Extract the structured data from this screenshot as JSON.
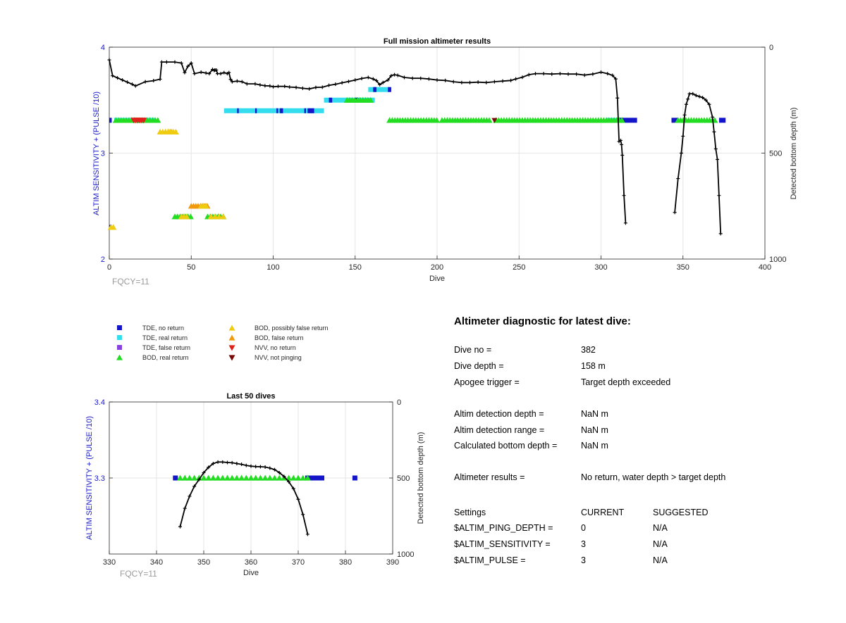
{
  "chart_data": [
    {
      "id": "full",
      "type": "scatter",
      "title": "Full mission altimeter results",
      "xlabel": "Dive",
      "ylabel": "ALTIM SENSITIVITY + (PULSE /10)",
      "y2label": "Detected bottom depth (m)",
      "xlim": [
        0,
        400
      ],
      "ylim": [
        2,
        4
      ],
      "y2lim": [
        1000,
        0
      ],
      "xticks": [
        0,
        50,
        100,
        150,
        200,
        250,
        300,
        350,
        400
      ],
      "yticks": [
        2,
        3,
        4
      ],
      "y2ticks": [
        0,
        500,
        1000
      ],
      "grid": true,
      "note": "FQCY=11",
      "depth_series": [
        [
          0,
          60
        ],
        [
          2,
          135
        ],
        [
          5,
          145
        ],
        [
          8,
          155
        ],
        [
          11,
          165
        ],
        [
          14,
          175
        ],
        [
          16,
          183
        ],
        [
          22,
          163
        ],
        [
          27,
          158
        ],
        [
          31,
          151
        ],
        [
          32,
          70
        ],
        [
          35,
          70
        ],
        [
          40,
          70
        ],
        [
          44,
          75
        ],
        [
          46,
          120
        ],
        [
          48,
          90
        ],
        [
          50,
          75
        ],
        [
          52,
          125
        ],
        [
          56,
          118
        ],
        [
          59,
          122
        ],
        [
          61,
          125
        ],
        [
          63,
          105
        ],
        [
          64,
          110
        ],
        [
          64.5,
          108
        ],
        [
          65.3,
          108
        ],
        [
          66,
          125
        ],
        [
          68,
          125
        ],
        [
          70,
          120
        ],
        [
          72,
          125
        ],
        [
          73,
          120
        ],
        [
          74,
          152
        ],
        [
          75,
          163
        ],
        [
          78,
          160
        ],
        [
          81,
          163
        ],
        [
          84,
          173
        ],
        [
          89,
          173
        ],
        [
          92,
          178
        ],
        [
          95,
          182
        ],
        [
          98,
          183
        ],
        [
          100,
          187
        ],
        [
          103,
          185
        ],
        [
          107,
          185
        ],
        [
          110,
          188
        ],
        [
          114,
          190
        ],
        [
          118,
          194
        ],
        [
          122,
          197
        ],
        [
          126,
          190
        ],
        [
          130,
          189
        ],
        [
          134,
          180
        ],
        [
          138,
          175
        ],
        [
          142,
          168
        ],
        [
          146,
          162
        ],
        [
          150,
          155
        ],
        [
          154,
          148
        ],
        [
          158,
          143
        ],
        [
          161,
          150
        ],
        [
          163,
          158
        ],
        [
          165,
          177
        ],
        [
          167,
          167
        ],
        [
          170,
          155
        ],
        [
          172,
          135
        ],
        [
          174,
          130
        ],
        [
          176,
          133
        ],
        [
          180,
          143
        ],
        [
          185,
          147
        ],
        [
          190,
          147
        ],
        [
          195,
          150
        ],
        [
          200,
          155
        ],
        [
          205,
          157
        ],
        [
          210,
          163
        ],
        [
          215,
          167
        ],
        [
          220,
          167
        ],
        [
          225,
          165
        ],
        [
          230,
          167
        ],
        [
          235,
          163
        ],
        [
          240,
          160
        ],
        [
          245,
          157
        ],
        [
          248,
          150
        ],
        [
          252,
          142
        ],
        [
          256,
          130
        ],
        [
          260,
          125
        ],
        [
          265,
          125
        ],
        [
          270,
          127
        ],
        [
          275,
          125
        ],
        [
          280,
          127
        ],
        [
          285,
          127
        ],
        [
          290,
          132
        ],
        [
          295,
          127
        ],
        [
          300,
          118
        ],
        [
          304,
          125
        ],
        [
          307,
          133
        ],
        [
          309,
          150
        ],
        [
          310,
          240
        ],
        [
          311,
          445
        ],
        [
          312,
          440
        ],
        [
          312.5,
          460
        ],
        [
          313,
          510
        ],
        [
          314,
          700
        ],
        [
          315,
          830
        ]
      ],
      "depth_series_2": [
        [
          345,
          780
        ],
        [
          347,
          620
        ],
        [
          349,
          500
        ],
        [
          350,
          420
        ],
        [
          351,
          320
        ],
        [
          352,
          270
        ],
        [
          353,
          245
        ],
        [
          354,
          220
        ],
        [
          356,
          220
        ],
        [
          358,
          228
        ],
        [
          360,
          233
        ],
        [
          362,
          238
        ],
        [
          364,
          250
        ],
        [
          366,
          270
        ],
        [
          368,
          330
        ],
        [
          369,
          400
        ],
        [
          370,
          480
        ],
        [
          371,
          530
        ],
        [
          372,
          700
        ],
        [
          373,
          880
        ]
      ],
      "markers": {
        "tde_no_return_seg": [
          [
            0,
            3
          ],
          [
            78,
            79
          ],
          [
            89,
            90
          ],
          [
            102,
            103
          ],
          [
            104,
            106
          ],
          [
            119,
            120
          ],
          [
            121,
            125
          ],
          [
            132,
            135
          ],
          [
            150,
            152
          ],
          [
            170,
            172
          ],
          [
            310,
            322
          ],
          [
            343,
            347
          ],
          [
            372,
            376
          ]
        ],
        "tde_real_return_seg": [
          [
            3,
            28
          ],
          [
            70,
            131
          ],
          [
            131,
            162
          ],
          [
            158,
            171
          ],
          [
            303,
            313
          ],
          [
            343,
            347
          ]
        ],
        "bod_real_return_seg": [
          [
            4,
            30
          ],
          [
            145,
            160
          ],
          [
            171,
            208
          ],
          [
            210,
            233
          ],
          [
            235,
            313
          ],
          [
            347,
            371
          ]
        ],
        "bod_possibly_false_pts": [
          [
            34,
            3.2
          ],
          [
            38,
            3.2
          ],
          [
            41,
            3.2
          ],
          [
            1,
            2.3
          ]
        ],
        "bod_false_pts": [
          [
            60,
            2.5
          ],
          [
            50,
            2.5
          ]
        ],
        "nvv_no_return_pts": [
          [
            16,
            3.3
          ],
          [
            18,
            3.3
          ],
          [
            20,
            3.3
          ],
          [
            235,
            3.3
          ]
        ]
      }
    },
    {
      "id": "last50",
      "type": "scatter",
      "title": "Last 50 dives",
      "xlabel": "Dive",
      "ylabel": "ALTIM SENSITIVITY + (PULSE /10)",
      "y2label": "Detected bottom depth (m)",
      "xlim": [
        330,
        390
      ],
      "ylim": [
        3.2,
        3.4
      ],
      "y2lim": [
        1000,
        0
      ],
      "xticks": [
        330,
        340,
        350,
        360,
        370,
        380,
        390
      ],
      "yticks": [
        3.3,
        3.4
      ],
      "y2ticks": [
        0,
        500,
        1000
      ],
      "grid": true,
      "note": "FQCY=11",
      "depth_series": [
        [
          345,
          820
        ],
        [
          346,
          700
        ],
        [
          347,
          620
        ],
        [
          348,
          555
        ],
        [
          349,
          510
        ],
        [
          350,
          465
        ],
        [
          351,
          430
        ],
        [
          352,
          405
        ],
        [
          353,
          395
        ],
        [
          354,
          395
        ],
        [
          355,
          398
        ],
        [
          356,
          400
        ],
        [
          357,
          405
        ],
        [
          358,
          410
        ],
        [
          359,
          417
        ],
        [
          360,
          422
        ],
        [
          361,
          425
        ],
        [
          362,
          426
        ],
        [
          363,
          428
        ],
        [
          364,
          435
        ],
        [
          365,
          445
        ],
        [
          366,
          465
        ],
        [
          367,
          490
        ],
        [
          368,
          525
        ],
        [
          369,
          570
        ],
        [
          370,
          640
        ],
        [
          371,
          740
        ],
        [
          372,
          870
        ]
      ],
      "tde_no_return_pts": [
        344,
        372,
        373,
        374,
        375,
        382
      ],
      "bod_real_return_range": [
        345,
        372
      ]
    }
  ],
  "legend": {
    "left": [
      {
        "label": "TDE, no return",
        "color": "#1414c8"
      },
      {
        "label": "TDE, real return",
        "color": "#33ddee"
      },
      {
        "label": "TDE, false return",
        "color": "#8844dd"
      },
      {
        "label": "BOD, real return",
        "color": "#22dd22"
      }
    ],
    "right": [
      {
        "label": "BOD, possibly false return",
        "color": "#f0cc10"
      },
      {
        "label": "BOD, false return",
        "color": "#f09a10"
      },
      {
        "label": "NVV, no return",
        "color": "#e0201a"
      },
      {
        "label": "NVV, not pinging",
        "color": "#7a0a0a"
      }
    ]
  },
  "diagnostic": {
    "heading": "Altimeter diagnostic for latest dive:",
    "rows": [
      {
        "k": "Dive no =",
        "v": "382"
      },
      {
        "k": "Dive depth =",
        "v": "158 m"
      },
      {
        "k": "Apogee trigger =",
        "v": "Target depth exceeded"
      },
      {
        "k": "Altim detection depth =",
        "v": "NaN m"
      },
      {
        "k": "Altim detection range =",
        "v": "NaN m"
      },
      {
        "k": "Calculated bottom depth =",
        "v": "NaN m"
      },
      {
        "k": "Altimeter results =",
        "v": "No return, water depth > target depth"
      }
    ],
    "settings": {
      "header": [
        "Settings",
        "CURRENT",
        "SUGGESTED"
      ],
      "rows": [
        [
          "$ALTIM_PING_DEPTH =",
          "0",
          "N/A"
        ],
        [
          "$ALTIM_SENSITIVITY =",
          "3",
          "N/A"
        ],
        [
          "$ALTIM_PULSE =",
          "3",
          "N/A"
        ]
      ]
    }
  }
}
